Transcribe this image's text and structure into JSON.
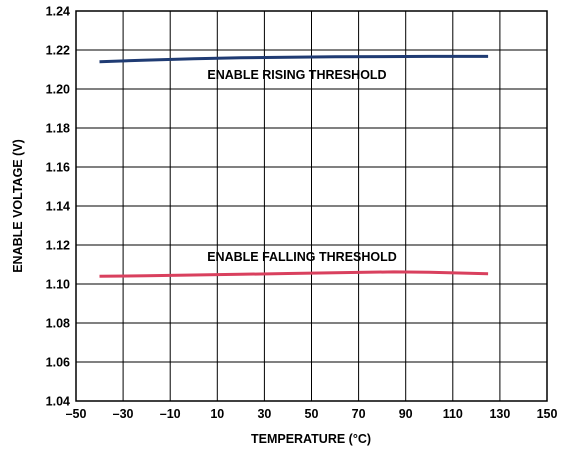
{
  "chart_data": {
    "type": "line",
    "title": "",
    "xlabel": "TEMPERATURE (°C)",
    "ylabel": "ENABLE VOLTAGE (V)",
    "xlim": [
      -50,
      150
    ],
    "ylim": [
      1.04,
      1.24
    ],
    "x_ticks": [
      "–50",
      "–30",
      "–10",
      "10",
      "30",
      "50",
      "70",
      "90",
      "110",
      "130",
      "150"
    ],
    "y_ticks": [
      "1.04",
      "1.06",
      "1.08",
      "1.10",
      "1.12",
      "1.14",
      "1.16",
      "1.18",
      "1.20",
      "1.22",
      "1.24"
    ],
    "grid": true,
    "series": [
      {
        "name": "ENABLE RISING THRESHOLD",
        "color": "#1f3b73",
        "x": [
          -40,
          -20,
          0,
          20,
          40,
          60,
          80,
          100,
          125
        ],
        "y": [
          1.214,
          1.2148,
          1.2155,
          1.216,
          1.2163,
          1.2165,
          1.2166,
          1.2167,
          1.2167
        ]
      },
      {
        "name": "ENABLE FALLING THRESHOLD",
        "color": "#d9405e",
        "x": [
          -40,
          -20,
          0,
          20,
          40,
          60,
          85,
          100,
          125
        ],
        "y": [
          1.104,
          1.1042,
          1.1046,
          1.105,
          1.1054,
          1.1058,
          1.1062,
          1.106,
          1.1053
        ]
      }
    ],
    "annotations": [
      {
        "text": "ENABLE RISING THRESHOLD"
      },
      {
        "text": "ENABLE FALLING THRESHOLD"
      }
    ]
  }
}
